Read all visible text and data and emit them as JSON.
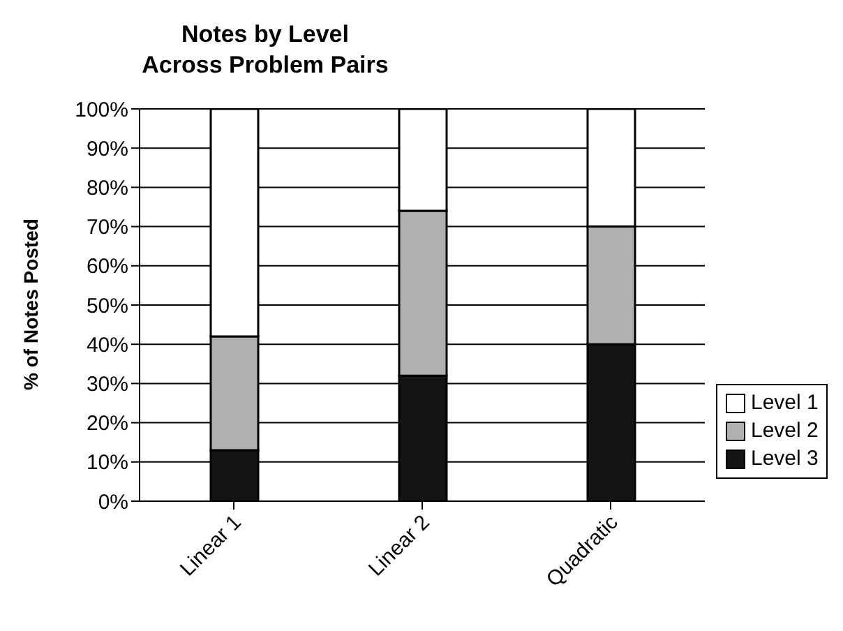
{
  "chart_data": {
    "type": "bar",
    "title": "Notes by Level Across Problem Pairs",
    "ylabel": "% of Notes Posted",
    "categories": [
      "Linear 1",
      "Linear 2",
      "Quadratic"
    ],
    "stacked": true,
    "series": [
      {
        "name": "Level 3",
        "color": "#141414",
        "values": [
          13,
          32,
          40
        ]
      },
      {
        "name": "Level 2",
        "color": "#b0b0b0",
        "values": [
          29,
          42,
          30
        ]
      },
      {
        "name": "Level 1",
        "color": "#ffffff",
        "values": [
          58,
          26,
          30
        ]
      }
    ],
    "ylim": [
      0,
      100
    ],
    "yticks": [
      {
        "value": 0,
        "label": "0%"
      },
      {
        "value": 10,
        "label": "10%"
      },
      {
        "value": 20,
        "label": "20%"
      },
      {
        "value": 30,
        "label": "30%"
      },
      {
        "value": 40,
        "label": "40%"
      },
      {
        "value": 50,
        "label": "50%"
      },
      {
        "value": 60,
        "label": "60%"
      },
      {
        "value": 70,
        "label": "70%"
      },
      {
        "value": 80,
        "label": "80%"
      },
      {
        "value": 90,
        "label": "90%"
      },
      {
        "value": 100,
        "label": "100%"
      }
    ],
    "grid": "y",
    "legend": "right"
  }
}
